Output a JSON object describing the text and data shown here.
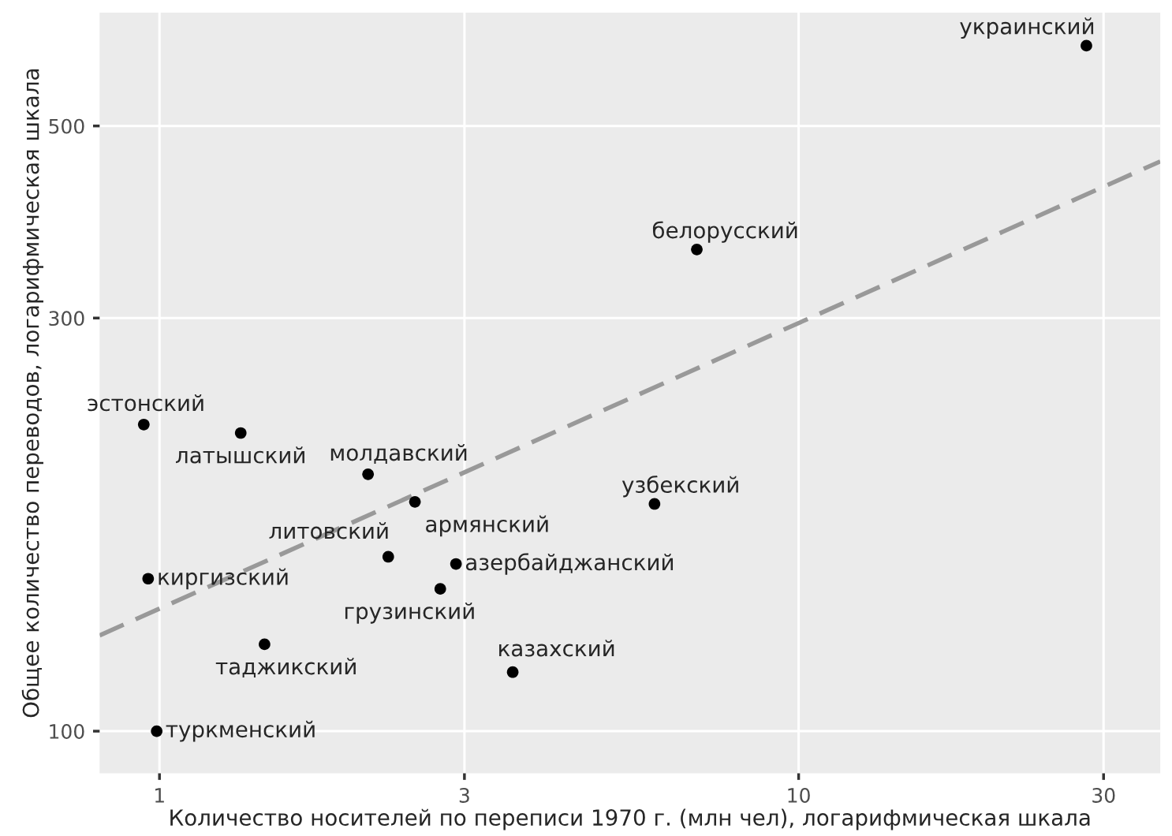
{
  "chart_data": {
    "type": "scatter",
    "xlabel": "Количество носителей по переписи 1970 г. (млн чел), логарифмическая шкала",
    "ylabel": "Общее количество переводов, логарифмическая шкала",
    "log": "xy",
    "grid": true,
    "marker": "circle",
    "xlim": [
      0.806,
      36.8
    ],
    "ylim": [
      89.4,
      676
    ],
    "xticks": [
      1,
      3,
      10,
      30
    ],
    "yticks": [
      100,
      300,
      500
    ],
    "series": [
      {
        "color": "#000000",
        "x": [
          28.2,
          6.93,
          5.95,
          0.945,
          1.34,
          2.12,
          2.51,
          2.28,
          2.91,
          2.75,
          3.57,
          0.96,
          1.46,
          0.99
        ],
        "values": [
          619,
          360,
          183,
          226,
          221,
          198,
          184,
          159,
          156,
          146,
          117,
          150,
          126,
          100
        ]
      },
      {
        "type": "line",
        "color": "#999999",
        "line_style": "dashed",
        "marker": "none",
        "x": [
          0.806,
          36.8
        ],
        "values": [
          129,
          455
        ]
      }
    ],
    "annotations": [
      {
        "text": "украинский",
        "x": 28.2,
        "y": 619
      },
      {
        "text": "белорусский",
        "x": 6.93,
        "y": 360
      },
      {
        "text": "узбекский",
        "x": 5.95,
        "y": 183
      },
      {
        "text": "эстонский",
        "x": 0.945,
        "y": 226
      },
      {
        "text": "латышский",
        "x": 1.34,
        "y": 221
      },
      {
        "text": "молдавский",
        "x": 2.12,
        "y": 198
      },
      {
        "text": "армянский",
        "x": 2.51,
        "y": 184
      },
      {
        "text": "литовский",
        "x": 2.28,
        "y": 159
      },
      {
        "text": "азербайджанский",
        "x": 2.91,
        "y": 156
      },
      {
        "text": "грузинский",
        "x": 2.75,
        "y": 146
      },
      {
        "text": "казахский",
        "x": 3.57,
        "y": 117
      },
      {
        "text": "киргизский",
        "x": 0.96,
        "y": 150
      },
      {
        "text": "таджикский",
        "x": 1.46,
        "y": 126
      },
      {
        "text": "туркменский",
        "x": 0.99,
        "y": 100
      }
    ]
  }
}
